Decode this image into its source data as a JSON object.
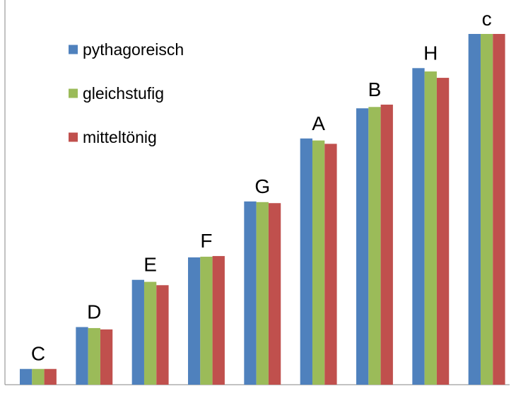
{
  "chart_data": {
    "type": "bar",
    "categories": [
      "C",
      "D",
      "E",
      "F",
      "G",
      "A",
      "B",
      "H",
      "c"
    ],
    "series": [
      {
        "name": "pythagoreisch",
        "color": "#4F81BD",
        "values": [
          1.0,
          1.125,
          1.266,
          1.333,
          1.5,
          1.688,
          1.778,
          1.898,
          2.0
        ]
      },
      {
        "name": "gleichstufig",
        "color": "#9BBB59",
        "values": [
          1.0,
          1.122,
          1.26,
          1.335,
          1.498,
          1.682,
          1.782,
          1.888,
          2.0
        ]
      },
      {
        "name": "mitteltönig",
        "color": "#C0504D",
        "values": [
          1.0,
          1.118,
          1.25,
          1.337,
          1.495,
          1.672,
          1.789,
          1.869,
          2.0
        ]
      }
    ],
    "ylim": [
      0.953,
      2.0
    ],
    "grid": false,
    "legend_position": "top-left",
    "bar_labels": "category"
  }
}
